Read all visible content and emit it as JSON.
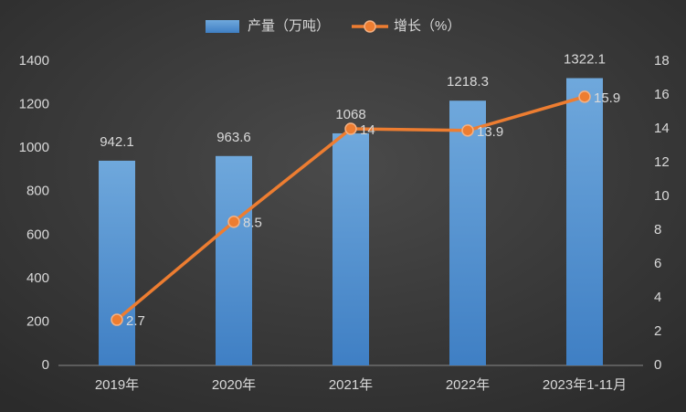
{
  "chart_data": {
    "type": "bar",
    "categories": [
      "2019年",
      "2020年",
      "2021年",
      "2022年",
      "2023年1-11月"
    ],
    "series": [
      {
        "name": "产量（万吨）",
        "type": "bar",
        "color": "#5b9bd5",
        "values": [
          942.1,
          963.6,
          1068,
          1218.3,
          1322.1
        ]
      },
      {
        "name": "增长（%）",
        "type": "line",
        "axis": "y2",
        "color": "#ed7d31",
        "values": [
          2.7,
          8.5,
          14,
          13.9,
          15.9
        ]
      }
    ],
    "ylim": [
      0,
      1400
    ],
    "yticks": [
      0,
      200,
      400,
      600,
      800,
      1000,
      1200,
      1400
    ],
    "y2lim": [
      0,
      18
    ],
    "y2ticks": [
      0,
      2,
      4,
      6,
      8,
      10,
      12,
      14,
      16,
      18
    ],
    "grid": false,
    "legend": "top"
  }
}
